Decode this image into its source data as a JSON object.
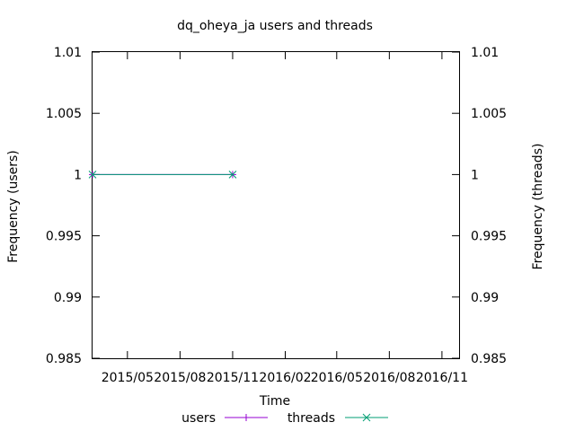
{
  "chart_data": {
    "type": "line",
    "title": "dq_oheya_ja users and threads",
    "xlabel": "Time",
    "ylabel_left": "Frequency (users)",
    "ylabel_right": "Frequency (threads)",
    "x_tick_labels": [
      "2015/05",
      "2015/08",
      "2015/11",
      "2016/02",
      "2016/05",
      "2016/08",
      "2016/11"
    ],
    "x_range": [
      "2015-03-01",
      "2016-12-01"
    ],
    "x_ticks": [
      "2015-05-01",
      "2015-08-01",
      "2015-11-01",
      "2016-02-01",
      "2016-05-01",
      "2016-08-01",
      "2016-11-01"
    ],
    "y_left": {
      "ylim": [
        0.985,
        1.01
      ],
      "ticks": [
        0.985,
        0.99,
        0.995,
        1,
        1.005,
        1.01
      ],
      "tick_labels": [
        "0.985",
        "0.99",
        "0.995",
        "1",
        "1.005",
        "1.01"
      ]
    },
    "y_right": {
      "ylim": [
        0.985,
        1.01
      ],
      "ticks": [
        0.985,
        0.99,
        0.995,
        1,
        1.005,
        1.01
      ],
      "tick_labels": [
        "0.985",
        "0.99",
        "0.995",
        "1",
        "1.005",
        "1.01"
      ]
    },
    "grid": false,
    "legend_position": "bottom",
    "series": [
      {
        "name": "users",
        "axis": "left",
        "color": "#9400d3",
        "marker": "plus",
        "x": [
          "2015-03-01",
          "2015-11-01"
        ],
        "y": [
          1,
          1
        ]
      },
      {
        "name": "threads",
        "axis": "right",
        "color": "#009e73",
        "marker": "cross",
        "x": [
          "2015-03-01",
          "2015-11-01"
        ],
        "y": [
          1,
          1
        ]
      }
    ]
  }
}
